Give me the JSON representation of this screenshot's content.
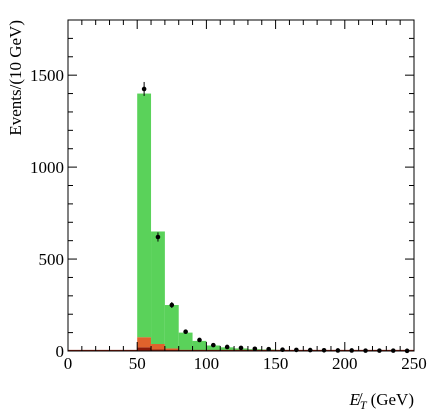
{
  "chart_data": {
    "type": "bar",
    "stacked": true,
    "xlabel": "E̸T (GeV)",
    "xlabel_main": "E̸",
    "xlabel_sub": "T",
    "xlabel_unit": "(GeV)",
    "ylabel": "Events/(10 GeV)",
    "xlim": [
      0,
      250
    ],
    "ylim": [
      0,
      1800
    ],
    "x_ticks": [
      0,
      50,
      100,
      150,
      200,
      250
    ],
    "y_ticks": [
      0,
      500,
      1000,
      1500
    ],
    "bin_width": 10,
    "bins": [
      50,
      60,
      70,
      80,
      90,
      100,
      110,
      120,
      130,
      140,
      150,
      160,
      170,
      180,
      190,
      200,
      210,
      220,
      230,
      240
    ],
    "series": [
      {
        "name": "",
        "color": "#8b1a0a",
        "values": [
          20,
          8,
          4,
          2,
          1,
          1,
          0,
          0,
          0,
          0,
          0,
          0,
          0,
          0,
          0,
          0,
          0,
          0,
          0,
          0
        ]
      },
      {
        "name": "",
        "color": "#e0622c",
        "values": [
          55,
          30,
          10,
          4,
          2,
          1,
          1,
          0,
          0,
          0,
          0,
          0,
          0,
          0,
          0,
          0,
          0,
          0,
          0,
          0
        ]
      },
      {
        "name": "",
        "color": "#5ad25a",
        "values": [
          1325,
          612,
          236,
          94,
          52,
          28,
          19,
          14,
          10,
          8,
          6,
          5,
          4,
          3,
          3,
          2,
          2,
          2,
          1,
          1
        ]
      }
    ],
    "data_points": {
      "x": [
        55,
        65,
        75,
        85,
        95,
        105,
        115,
        125,
        135,
        145,
        155,
        165,
        175,
        185,
        195,
        205,
        215,
        225,
        235,
        245
      ],
      "y": [
        1425,
        620,
        250,
        105,
        60,
        32,
        22,
        17,
        12,
        10,
        7,
        6,
        5,
        4,
        3,
        3,
        2,
        2,
        2,
        1
      ],
      "err": [
        38,
        25,
        16,
        10,
        8,
        6,
        5,
        4,
        3,
        3,
        3,
        2,
        2,
        2,
        2,
        2,
        1,
        1,
        1,
        1
      ]
    },
    "grid": false,
    "legend": "none"
  }
}
